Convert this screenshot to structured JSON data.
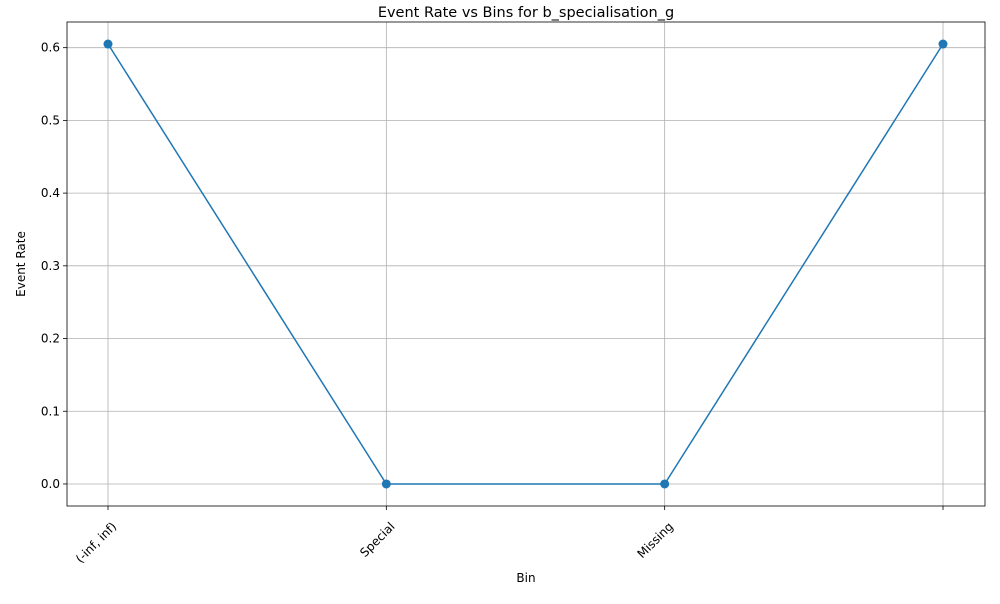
{
  "chart_data": {
    "type": "line",
    "title": "Event Rate vs Bins for b_specialisation_g",
    "xlabel": "Bin",
    "ylabel": "Event Rate",
    "categories": [
      "(-inf, inf)",
      "Special",
      "Missing",
      ""
    ],
    "series": [
      {
        "values": [
          0.605,
          0.0,
          0.0,
          0.605
        ]
      }
    ],
    "ylim": [
      -0.0303,
      0.6353
    ],
    "yticks": [
      "0.0",
      "0.1",
      "0.2",
      "0.3",
      "0.4",
      "0.5",
      "0.6"
    ],
    "ytick_values": [
      0.0,
      0.1,
      0.2,
      0.3,
      0.4,
      0.5,
      0.6
    ],
    "grid": true,
    "marker": "circle",
    "colors": {
      "line": "#1f77b4",
      "grid": "#b0b0b0",
      "axis": "#000000"
    }
  }
}
